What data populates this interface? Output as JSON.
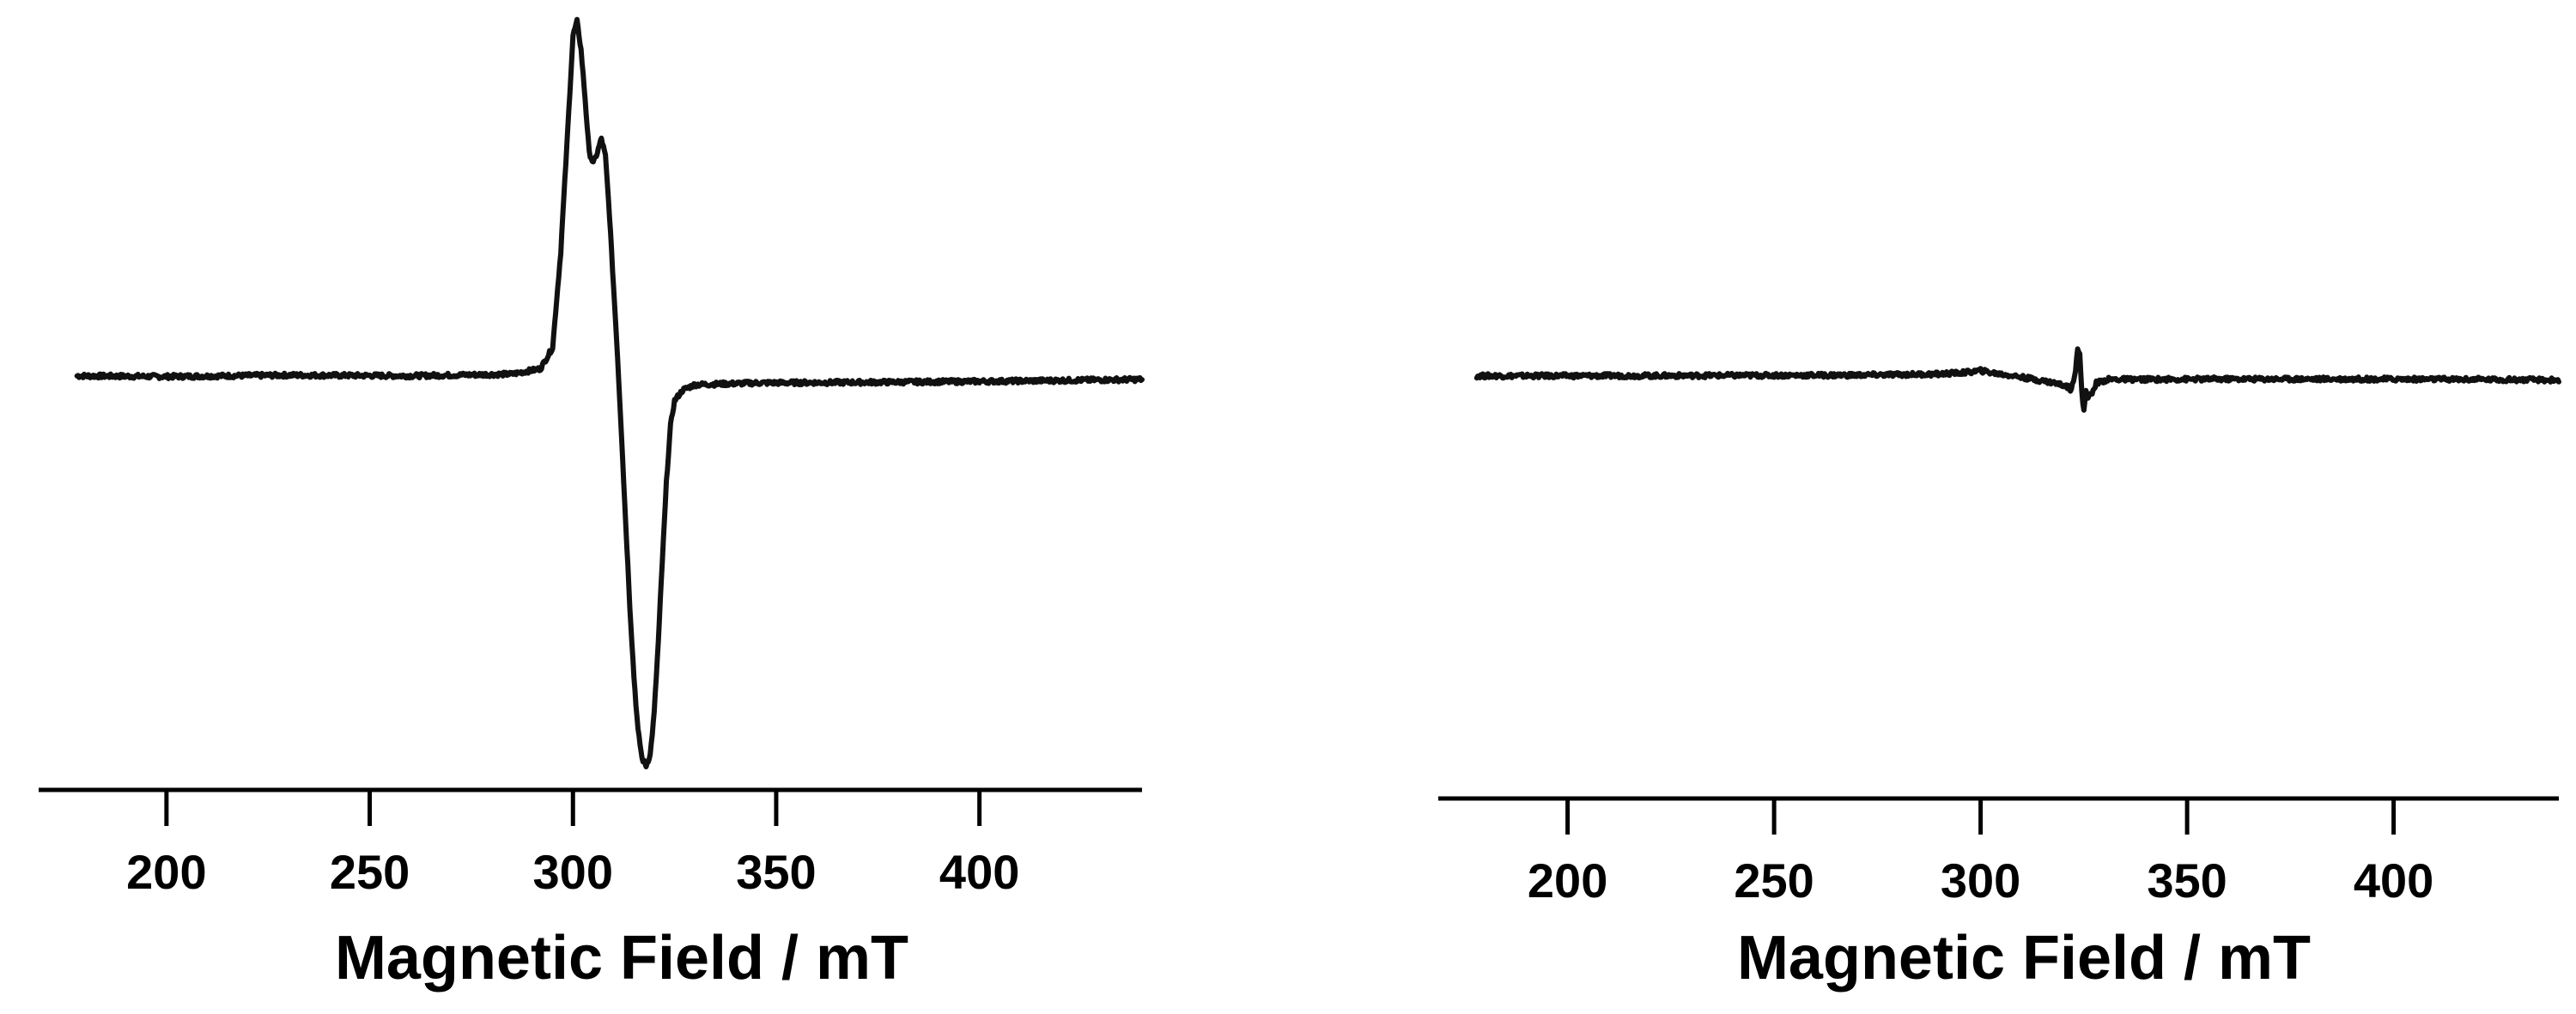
{
  "chart_data": [
    {
      "type": "line",
      "title": "",
      "xlabel": "Magnetic Field / mT",
      "ylabel": "",
      "xlim": [
        177,
        440
      ],
      "ylim": [
        -1.12,
        1.0
      ],
      "x_ticks": [
        200,
        250,
        300,
        350,
        400
      ],
      "grid": false,
      "legend": "none",
      "series": [
        {
          "name": "",
          "color": "#111111",
          "points": [
            [
              178,
              0.0
            ],
            [
              200,
              -0.002
            ],
            [
              230,
              0.002
            ],
            [
              260,
              0.0
            ],
            [
              285,
              0.005
            ],
            [
              292,
              0.02
            ],
            [
              295,
              0.08
            ],
            [
              297,
              0.35
            ],
            [
              299,
              0.75
            ],
            [
              300,
              0.96
            ],
            [
              301,
              1.0
            ],
            [
              302,
              0.92
            ],
            [
              303,
              0.78
            ],
            [
              304,
              0.63
            ],
            [
              305,
              0.6
            ],
            [
              306,
              0.63
            ],
            [
              307,
              0.67
            ],
            [
              308,
              0.62
            ],
            [
              309,
              0.45
            ],
            [
              310,
              0.25
            ],
            [
              311,
              0.05
            ],
            [
              312,
              -0.18
            ],
            [
              313,
              -0.42
            ],
            [
              314,
              -0.65
            ],
            [
              315,
              -0.85
            ],
            [
              316,
              -1.0
            ],
            [
              317,
              -1.08
            ],
            [
              318,
              -1.1
            ],
            [
              319,
              -1.07
            ],
            [
              320,
              -0.95
            ],
            [
              321,
              -0.75
            ],
            [
              322,
              -0.52
            ],
            [
              323,
              -0.3
            ],
            [
              324,
              -0.14
            ],
            [
              325,
              -0.07
            ],
            [
              327,
              -0.04
            ],
            [
              330,
              -0.025
            ],
            [
              345,
              -0.02
            ],
            [
              375,
              -0.018
            ],
            [
              405,
              -0.015
            ],
            [
              440,
              -0.01
            ]
          ]
        }
      ]
    },
    {
      "type": "line",
      "title": "",
      "xlabel": "Magnetic Field / mT",
      "ylabel": "",
      "xlim": [
        177,
        440
      ],
      "ylim": [
        -1.12,
        1.0
      ],
      "x_ticks": [
        200,
        250,
        300,
        350,
        400
      ],
      "grid": false,
      "legend": "none",
      "series": [
        {
          "name": "",
          "color": "#111111",
          "points": [
            [
              178,
              0.0
            ],
            [
              200,
              0.0
            ],
            [
              240,
              0.001
            ],
            [
              270,
              0.002
            ],
            [
              290,
              0.005
            ],
            [
              297,
              0.01
            ],
            [
              300,
              0.015
            ],
            [
              303,
              0.008
            ],
            [
              308,
              0.0
            ],
            [
              313,
              -0.01
            ],
            [
              318,
              -0.02
            ],
            [
              321,
              -0.03
            ],
            [
              322,
              -0.04
            ],
            [
              323,
              0.02
            ],
            [
              323.5,
              0.08
            ],
            [
              324,
              0.06
            ],
            [
              324.5,
              -0.05
            ],
            [
              325,
              -0.1
            ],
            [
              325.5,
              -0.04
            ],
            [
              326,
              -0.06
            ],
            [
              327,
              -0.05
            ],
            [
              328,
              -0.02
            ],
            [
              331,
              -0.01
            ],
            [
              340,
              -0.01
            ],
            [
              360,
              -0.009
            ],
            [
              390,
              -0.009
            ],
            [
              420,
              -0.01
            ],
            [
              440,
              -0.012
            ]
          ]
        }
      ]
    }
  ]
}
